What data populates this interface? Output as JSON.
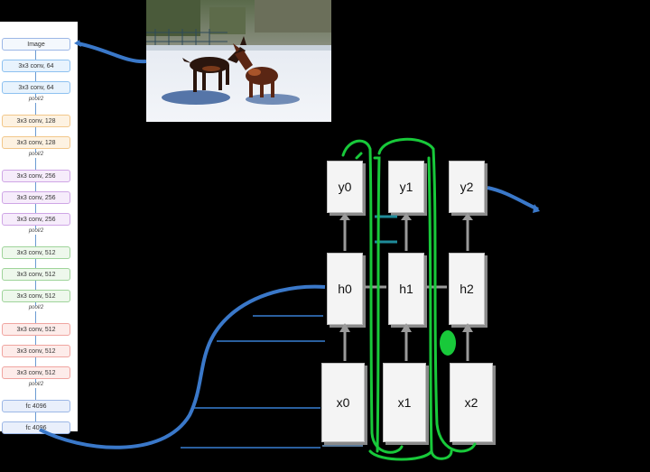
{
  "vgg": {
    "image_label": "Image",
    "layers": [
      {
        "label": "3x3 conv, 64",
        "group": "c64"
      },
      {
        "label": "3x3 conv, 64",
        "group": "c64"
      },
      {
        "label": "pool/2",
        "group": "pool"
      },
      {
        "label": "3x3 conv, 128",
        "group": "c128"
      },
      {
        "label": "3x3 conv, 128",
        "group": "c128"
      },
      {
        "label": "pool/2",
        "group": "pool"
      },
      {
        "label": "3x3 conv, 256",
        "group": "c256"
      },
      {
        "label": "3x3 conv, 256",
        "group": "c256"
      },
      {
        "label": "3x3 conv, 256",
        "group": "c256"
      },
      {
        "label": "pool/2",
        "group": "pool"
      },
      {
        "label": "3x3 conv, 512",
        "group": "c512a"
      },
      {
        "label": "3x3 conv, 512",
        "group": "c512a"
      },
      {
        "label": "3x3 conv, 512",
        "group": "c512a"
      },
      {
        "label": "pool/2",
        "group": "pool"
      },
      {
        "label": "3x3 conv, 512",
        "group": "c512b"
      },
      {
        "label": "3x3 conv, 512",
        "group": "c512b"
      },
      {
        "label": "3x3 conv, 512",
        "group": "c512b"
      },
      {
        "label": "pool/2",
        "group": "pool"
      },
      {
        "label": "fc 4096",
        "group": "fc"
      },
      {
        "label": "fc 4096",
        "group": "fc"
      }
    ]
  },
  "rnn": {
    "outputs": [
      "y0",
      "y1",
      "y2"
    ],
    "hidden": [
      "h0",
      "h1",
      "h2"
    ],
    "inputs": [
      "x0",
      "x1",
      "x2"
    ]
  },
  "colors": {
    "background": "#000000",
    "arrow_blue": "#3a78c9",
    "loop_green": "#18c93a",
    "node_fill": "#f4f4f4"
  }
}
